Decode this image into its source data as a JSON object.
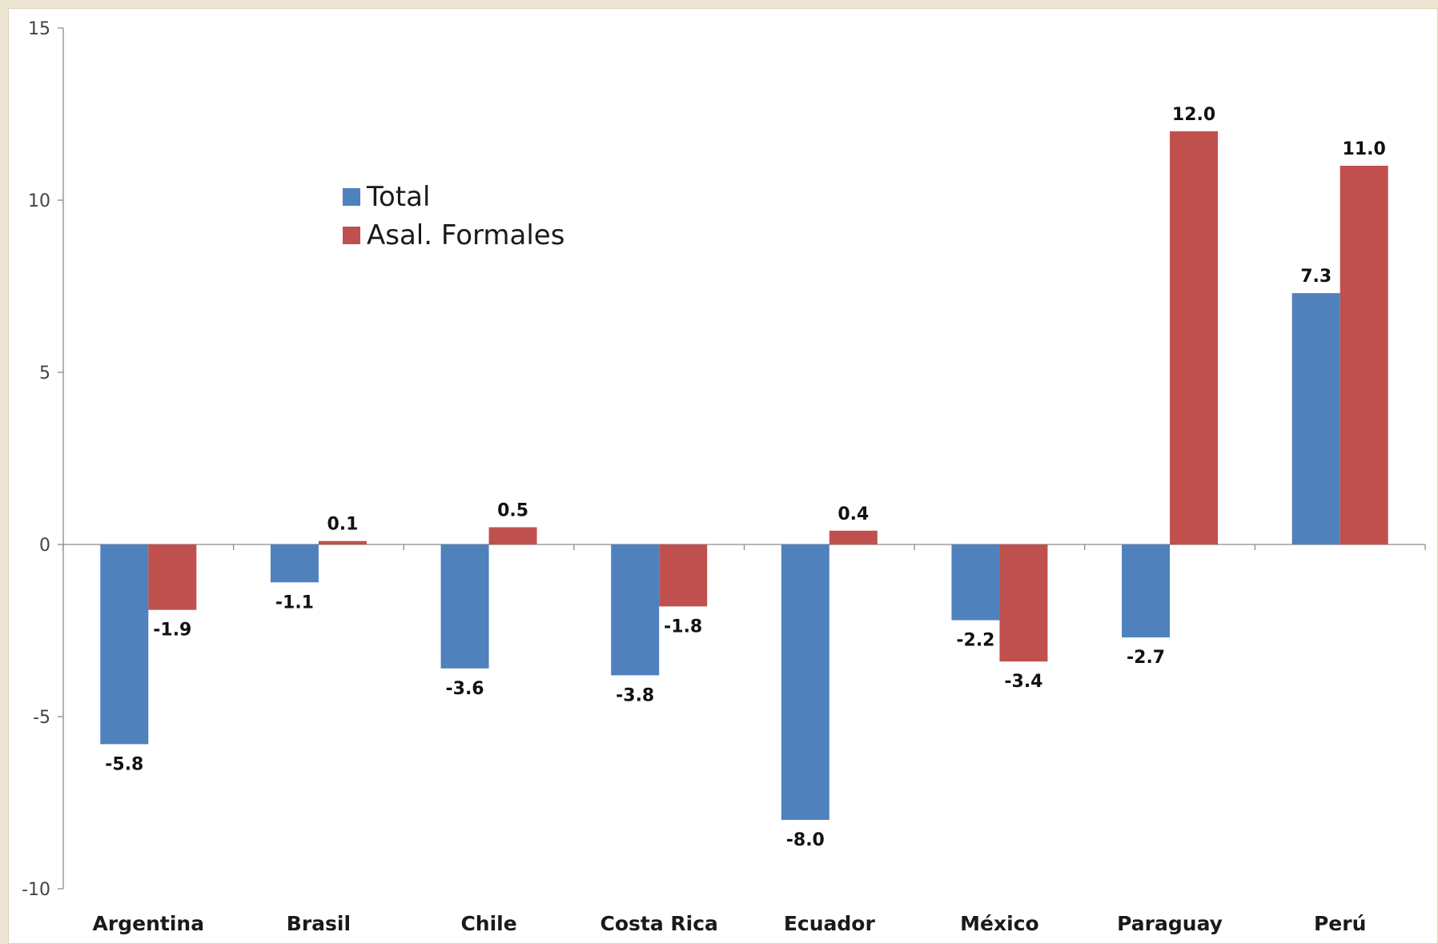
{
  "chart_data": {
    "type": "bar",
    "categories": [
      "Argentina",
      "Brasil",
      "Chile",
      "Costa Rica",
      "Ecuador",
      "México",
      "Paraguay",
      "Perú"
    ],
    "series": [
      {
        "name": "Total",
        "color": "#4f81bd",
        "values": [
          -5.8,
          -1.1,
          -3.6,
          -3.8,
          -8.0,
          -2.2,
          -2.7,
          7.3
        ]
      },
      {
        "name": "Asal. Formales",
        "color": "#c0504d",
        "values": [
          -1.9,
          0.1,
          0.5,
          -1.8,
          0.4,
          -3.4,
          12.0,
          11.0
        ]
      }
    ],
    "ylim": [
      -10,
      15
    ],
    "yticks": [
      15,
      10,
      5,
      0,
      -5,
      -10
    ],
    "ytick_labels": [
      "15",
      "10",
      "5",
      "0",
      "-5",
      "-10"
    ],
    "data_labels": [
      [
        "-5.8",
        "-1.1",
        "-3.6",
        "-3.8",
        "-8.0",
        "-2.2",
        "-2.7",
        "7.3"
      ],
      [
        "-1.9",
        "0.1",
        "0.5",
        "-1.8",
        "0.4",
        "-3.4",
        "12.0",
        "11.0"
      ]
    ],
    "legend_position": "upper-left",
    "grid": false
  },
  "legend": {
    "items": [
      {
        "label": "Total",
        "color": "#4f81bd"
      },
      {
        "label": "Asal. Formales",
        "color": "#c0504d"
      }
    ]
  }
}
